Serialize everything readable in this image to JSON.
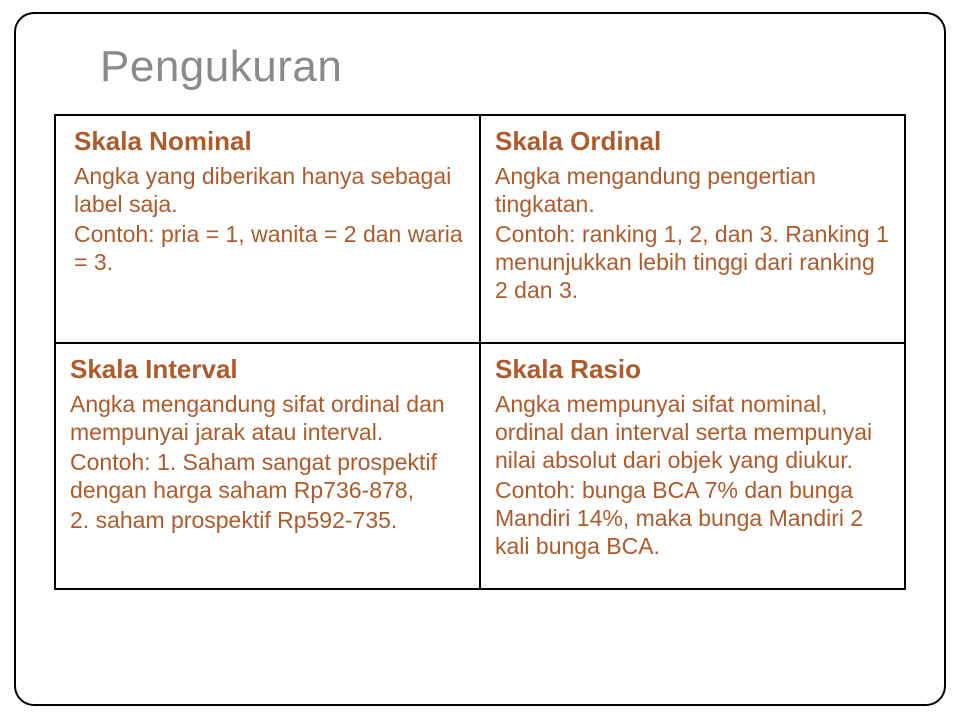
{
  "slide": {
    "title": "Pengukuran",
    "title_color": "#8a8a8a",
    "title_fontsize": 44,
    "frame_border_color": "#000000",
    "frame_border_radius": 20,
    "background_color": "#ffffff",
    "text_color": "#b05a2a",
    "cell_border_color": "#000000",
    "grid": {
      "rows": 2,
      "cols": 2,
      "cell_title_fontsize": 26,
      "cell_body_fontsize": 23
    },
    "cells": {
      "nominal": {
        "title": "Skala Nominal",
        "body_l1": "Angka yang diberikan hanya sebagai label saja.",
        "body_l2": "Contoh: pria = 1, wanita = 2 dan waria = 3."
      },
      "ordinal": {
        "title": "Skala Ordinal",
        "body_l1": "Angka mengandung pengertian tingkatan.",
        "body_l2": "Contoh: ranking 1, 2, dan 3. Ranking 1 menunjukkan lebih tinggi dari ranking 2 dan 3."
      },
      "interval": {
        "title": "Skala Interval",
        "body_l1": "Angka mengandung sifat ordinal dan mempunyai jarak atau interval.",
        "body_l2": "Contoh: 1. Saham sangat prospektif dengan harga saham Rp736-878,",
        "body_l3": "2. saham prospektif Rp592-735."
      },
      "rasio": {
        "title": "Skala Rasio",
        "body_l1": "Angka mempunyai sifat nominal, ordinal dan interval serta mempunyai nilai absolut dari objek yang diukur.",
        "body_l2": "Contoh: bunga BCA 7% dan bunga Mandiri 14%, maka bunga Mandiri 2 kali bunga BCA."
      }
    }
  }
}
